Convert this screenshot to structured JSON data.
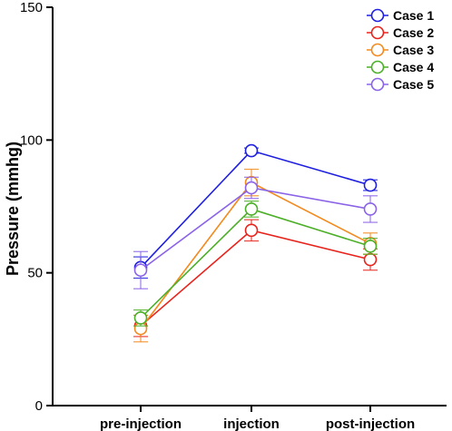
{
  "chart_data": {
    "type": "line",
    "categories": [
      "pre-injection",
      "injection",
      "post-injection"
    ],
    "ylabel": "Pressure (mmhg)",
    "xlabel": "",
    "ylim": [
      0,
      150
    ],
    "yticks": [
      0,
      50,
      100,
      150
    ],
    "grid": false,
    "legend_position": "top-right",
    "series": [
      {
        "name": "Case 1",
        "color": "#1f1fe0",
        "values": [
          52,
          96,
          83
        ],
        "errors": [
          4,
          1,
          2
        ]
      },
      {
        "name": "Case 2",
        "color": "#e8231c",
        "values": [
          30,
          66,
          55
        ],
        "errors": [
          4,
          4,
          4
        ]
      },
      {
        "name": "Case 3",
        "color": "#f28a1e",
        "values": [
          29,
          84,
          61
        ],
        "errors": [
          5,
          5,
          4
        ]
      },
      {
        "name": "Case 4",
        "color": "#4caf28",
        "values": [
          33,
          74,
          60
        ],
        "errors": [
          3,
          3,
          3
        ]
      },
      {
        "name": "Case 5",
        "color": "#8a63e8",
        "values": [
          51,
          82,
          74
        ],
        "errors": [
          7,
          4,
          5
        ]
      }
    ]
  }
}
